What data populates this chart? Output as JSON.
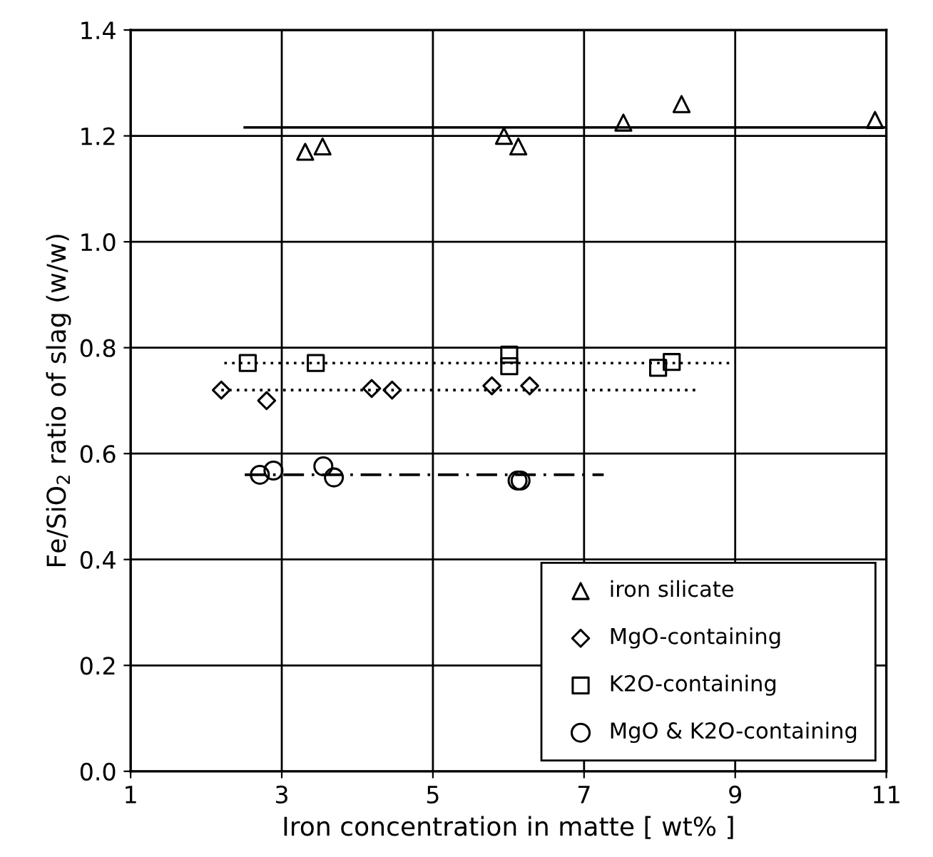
{
  "chart_data": {
    "type": "scatter",
    "xlabel": "Iron concentration in matte [ wt% ]",
    "ylabel": "Fe/SiO$_{2}$ ratio of slag (w/w)",
    "xlim": [
      1,
      11
    ],
    "xticks": [
      1,
      3,
      5,
      7,
      9,
      11
    ],
    "ylim": [
      0,
      1.4
    ],
    "yticks": [
      {
        "value": 0,
        "label": "0.0"
      },
      0.2,
      0.4,
      0.6,
      0.8,
      {
        "value": 1,
        "label": "1.0"
      },
      1.2,
      1.4
    ],
    "grid": true,
    "legend": "bottom right",
    "series": [
      {
        "name": "iron silicate",
        "color": "#000000",
        "marker": "triangle",
        "x": [
          3.31,
          3.54,
          5.94,
          6.13,
          7.52,
          8.29,
          10.85
        ],
        "values": [
          1.17,
          1.18,
          1.2,
          1.18,
          1.225,
          1.26,
          1.23
        ]
      },
      {
        "name": "MgO-containing",
        "color": "#000000",
        "marker": "diamond",
        "x": [
          2.2,
          2.8,
          4.19,
          4.46,
          5.78,
          6.28
        ],
        "values": [
          0.72,
          0.7,
          0.723,
          0.72,
          0.728,
          0.728
        ]
      },
      {
        "name": "K2O-containing",
        "color": "#000000",
        "marker": "square",
        "x": [
          2.55,
          3.45,
          6.01,
          6.01,
          7.98,
          8.16
        ],
        "values": [
          0.771,
          0.771,
          0.787,
          0.765,
          0.762,
          0.773
        ]
      },
      {
        "name": "MgO & K2O-containing",
        "color": "#000000",
        "marker": "circle",
        "x": [
          2.71,
          2.89,
          3.55,
          3.69,
          6.12,
          6.16
        ],
        "values": [
          0.56,
          0.568,
          0.576,
          0.555,
          0.549,
          0.549
        ]
      },
      {
        "type": "line",
        "color": "#000000",
        "line_style": "solid",
        "x": [
          2.51,
          11
        ],
        "values": [
          1.216,
          1.216
        ]
      },
      {
        "type": "line",
        "color": "#000000",
        "line_style": "dotted",
        "x": [
          2.2,
          8.5
        ],
        "values": [
          0.72,
          0.72
        ]
      },
      {
        "type": "line",
        "color": "#000000",
        "line_style": "dotted",
        "x": [
          2.24,
          8.96
        ],
        "values": [
          0.771,
          0.771
        ]
      },
      {
        "type": "line",
        "color": "#000000",
        "line_style": "dashdot",
        "x": [
          2.51,
          7.26
        ],
        "values": [
          0.56,
          0.56
        ]
      }
    ]
  }
}
